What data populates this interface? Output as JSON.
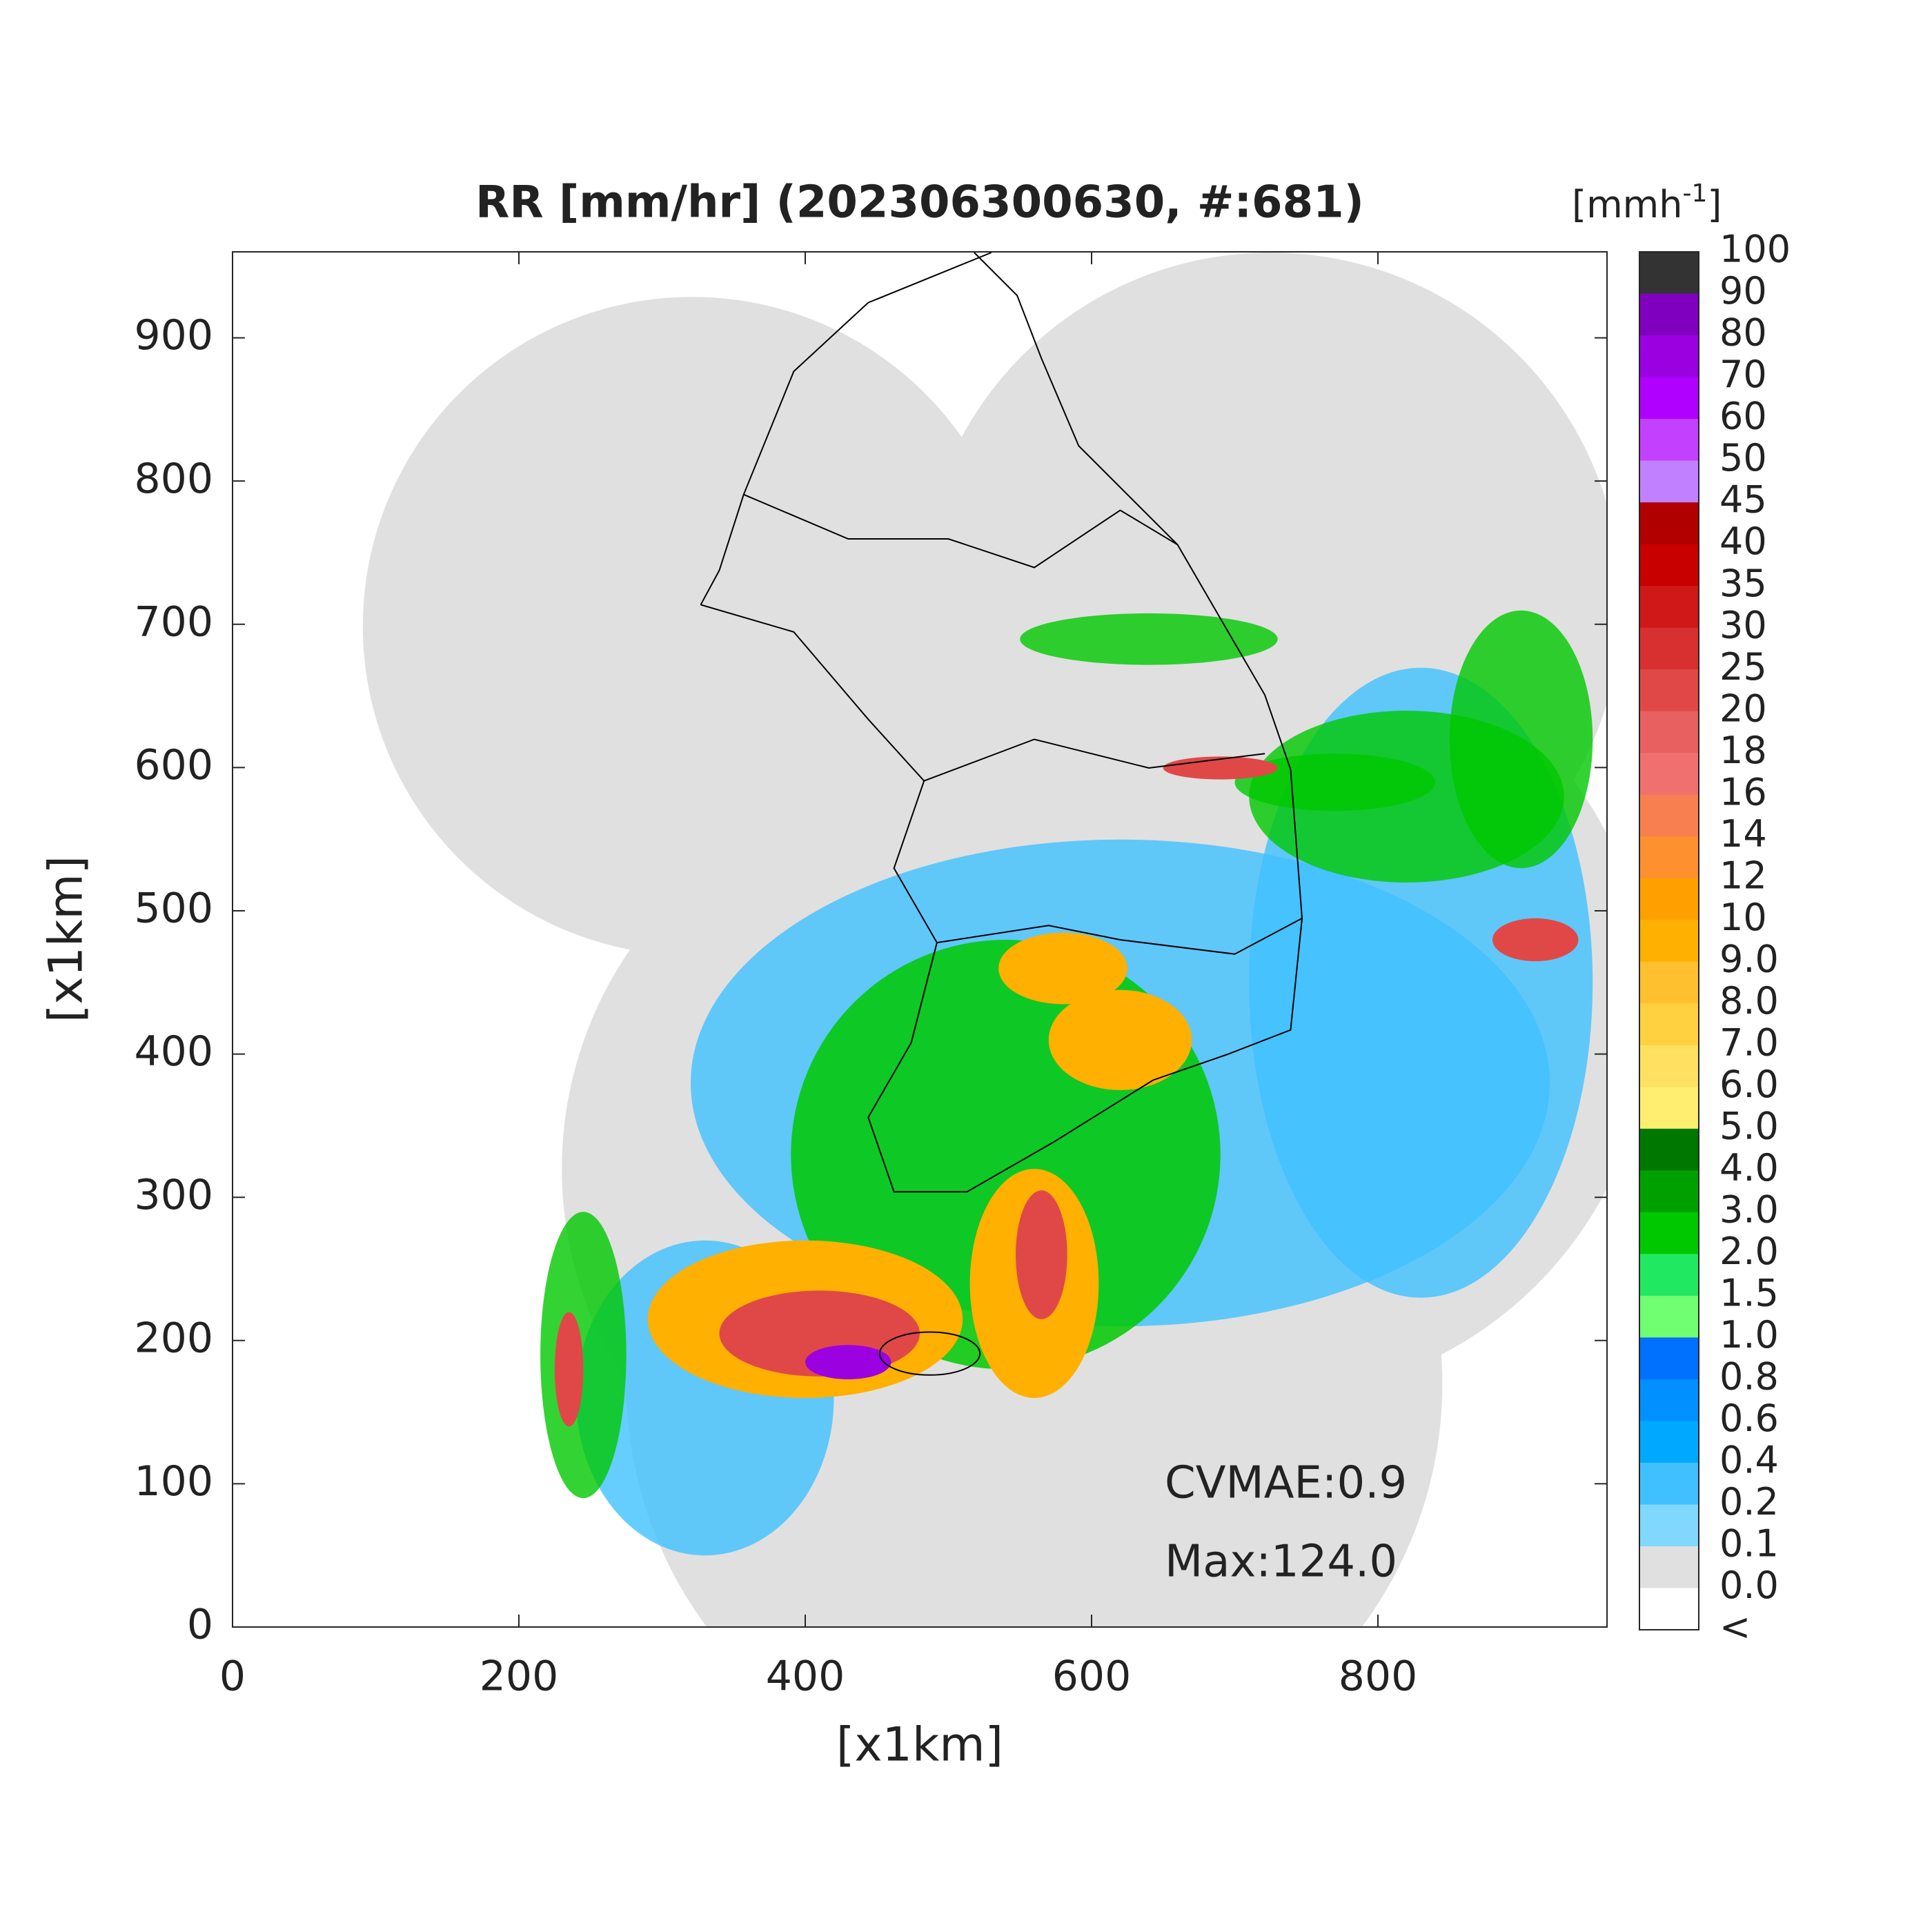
{
  "chart_data": {
    "type": "map",
    "title": "RR [mm/hr] (202306300630, #:681)",
    "xlabel": "[x1km]",
    "ylabel": "[x1km]",
    "xlim": [
      0,
      960
    ],
    "ylim": [
      0,
      960
    ],
    "xticks": [
      0,
      200,
      400,
      600,
      800
    ],
    "yticks": [
      0,
      100,
      200,
      300,
      400,
      500,
      600,
      700,
      800,
      900
    ],
    "annotations": [
      "CVMAE:0.9",
      "Max:124.0"
    ],
    "colorbar": {
      "unit": "[mmh",
      "unit_exponent": "-1",
      "unit_close": "]",
      "labels": [
        "100",
        "90",
        "80",
        "70",
        "60",
        "50",
        "45",
        "40",
        "35",
        "30",
        "25",
        "20",
        "18",
        "16",
        "14",
        "12",
        "10",
        "9.0",
        "8.0",
        "7.0",
        "6.0",
        "5.0",
        "4.0",
        "3.0",
        "2.0",
        "1.5",
        "1.0",
        "0.8",
        "0.6",
        "0.4",
        "0.2",
        "0.1",
        "0.0",
        "<"
      ],
      "colors": [
        "#333333",
        "#8000c0",
        "#9b00e0",
        "#b000ff",
        "#c440ff",
        "#c080ff",
        "#b00000",
        "#c80000",
        "#d01818",
        "#d83030",
        "#e04848",
        "#e86060",
        "#f07070",
        "#f88050",
        "#ff9030",
        "#ffa000",
        "#ffb000",
        "#ffc030",
        "#ffd040",
        "#ffe060",
        "#ffee70",
        "#007800",
        "#00a000",
        "#00c800",
        "#20e860",
        "#70ff70",
        "#0070ff",
        "#0090ff",
        "#00a8ff",
        "#40c0ff",
        "#80d8ff",
        "#e0e0e0",
        "#ffffff"
      ]
    }
  }
}
